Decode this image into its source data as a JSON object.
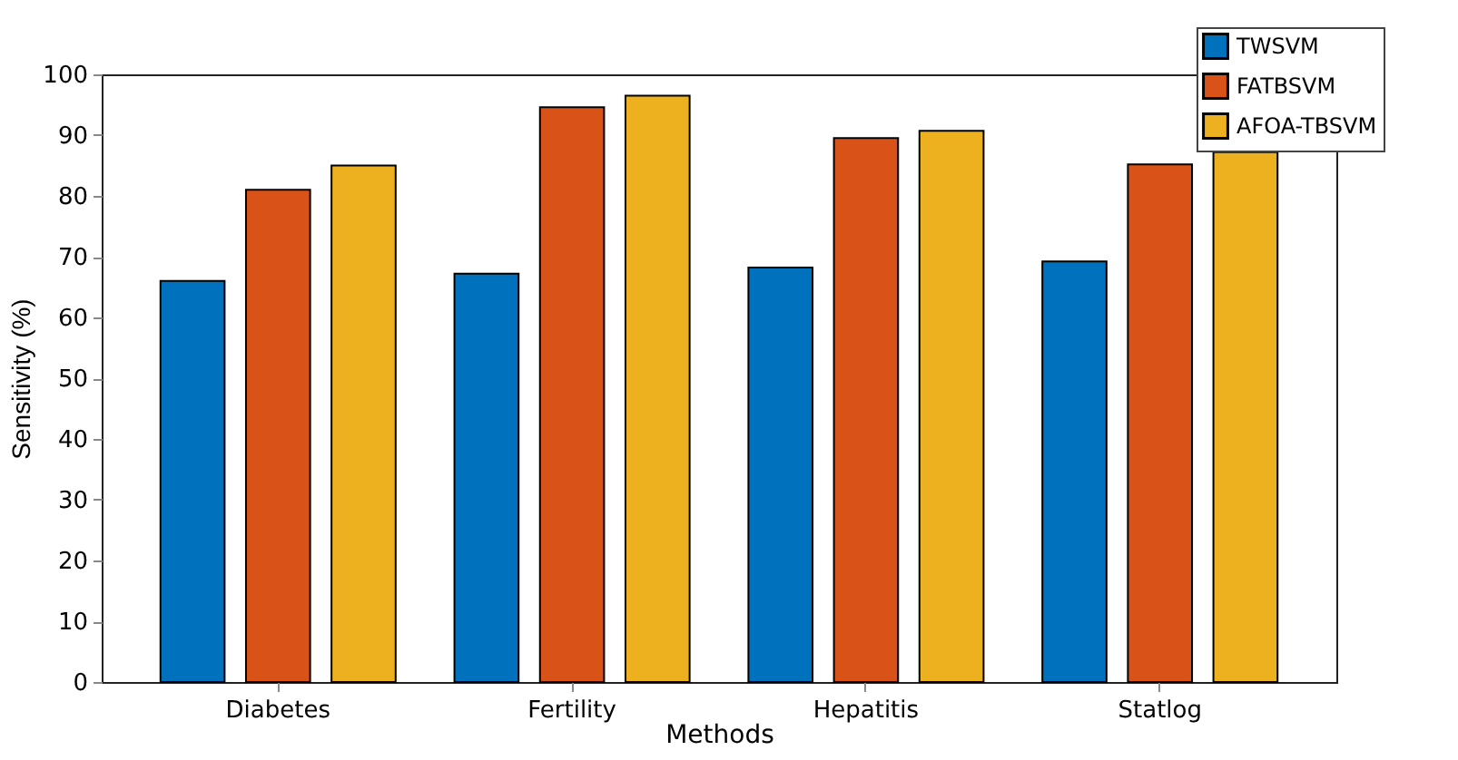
{
  "chart_data": {
    "type": "bar",
    "xlabel": "Methods",
    "ylabel": "Sensitivity (%)",
    "categories": [
      "Diabetes",
      "Fertility",
      "Hepatitis",
      "Statlog"
    ],
    "series": [
      {
        "name": "TWSVM",
        "color": "#0072bd",
        "values": [
          66.0,
          67.2,
          68.2,
          69.2
        ]
      },
      {
        "name": "FATBSVM",
        "color": "#d95319",
        "values": [
          81.0,
          94.6,
          89.5,
          85.2
        ]
      },
      {
        "name": "AFOA-TBSVM",
        "color": "#edb120",
        "values": [
          85.0,
          96.5,
          90.7,
          87.2
        ]
      }
    ],
    "ylim": [
      0,
      100
    ],
    "yticks": [
      0,
      10,
      20,
      30,
      40,
      50,
      60,
      70,
      80,
      90,
      100
    ],
    "grid": false,
    "legend": "top right"
  }
}
